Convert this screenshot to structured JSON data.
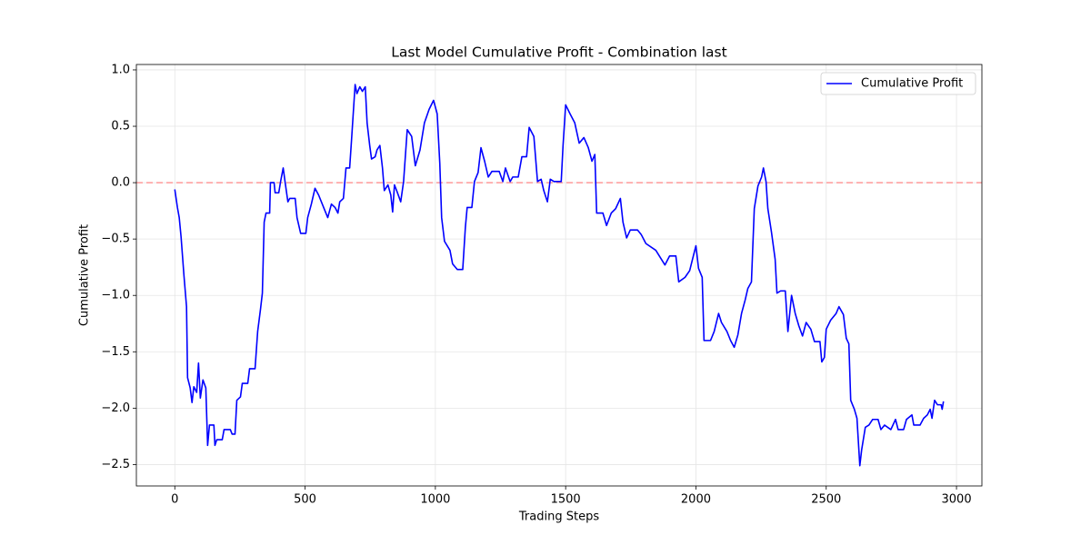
{
  "chart_data": {
    "type": "line",
    "title": "Last Model Cumulative Profit - Combination last",
    "x_label": "Trading Steps",
    "y_label": "Cumulative Profit",
    "x": [
      0,
      10,
      17,
      24,
      35,
      45,
      49,
      59,
      66,
      73,
      84,
      91,
      98,
      108,
      119,
      126,
      133,
      150,
      154,
      161,
      182,
      189,
      213,
      220,
      231,
      238,
      252,
      259,
      280,
      287,
      308,
      318,
      329,
      336,
      343,
      350,
      364,
      367,
      381,
      385,
      399,
      406,
      416,
      423,
      434,
      441,
      462,
      469,
      483,
      503,
      510,
      524,
      538,
      552,
      573,
      587,
      601,
      615,
      626,
      633,
      647,
      657,
      671,
      678,
      692,
      699,
      710,
      720,
      731,
      738,
      748,
      755,
      769,
      776,
      787,
      797,
      804,
      818,
      829,
      836,
      843,
      853,
      867,
      878,
      892,
      909,
      923,
      941,
      958,
      976,
      993,
      1007,
      1017,
      1024,
      1035,
      1056,
      1066,
      1084,
      1105,
      1115,
      1122,
      1140,
      1150,
      1164,
      1175,
      1189,
      1203,
      1217,
      1245,
      1259,
      1269,
      1287,
      1297,
      1318,
      1332,
      1350,
      1360,
      1378,
      1392,
      1406,
      1416,
      1430,
      1441,
      1455,
      1483,
      1490,
      1500,
      1517,
      1535,
      1552,
      1570,
      1587,
      1601,
      1612,
      1619,
      1643,
      1657,
      1675,
      1692,
      1710,
      1720,
      1734,
      1748,
      1776,
      1790,
      1808,
      1846,
      1881,
      1899,
      1923,
      1934,
      1958,
      1976,
      1990,
      2000,
      2010,
      2024,
      2031,
      2056,
      2070,
      2087,
      2098,
      2119,
      2133,
      2147,
      2161,
      2175,
      2189,
      2199,
      2213,
      2224,
      2238,
      2252,
      2259,
      2269,
      2276,
      2290,
      2304,
      2311,
      2325,
      2343,
      2353,
      2367,
      2381,
      2395,
      2409,
      2423,
      2441,
      2455,
      2476,
      2483,
      2493,
      2500,
      2517,
      2538,
      2549,
      2566,
      2577,
      2587,
      2594,
      2608,
      2618,
      2629,
      2636,
      2650,
      2664,
      2678,
      2699,
      2710,
      2724,
      2748,
      2766,
      2776,
      2797,
      2808,
      2829,
      2836,
      2860,
      2874,
      2888,
      2899,
      2906,
      2916,
      2927,
      2941,
      2945,
      2950
    ],
    "series": [
      {
        "name": "Cumulative Profit",
        "color": "#0000ff",
        "values": [
          -0.06,
          -0.22,
          -0.31,
          -0.48,
          -0.82,
          -1.1,
          -1.73,
          -1.82,
          -1.95,
          -1.81,
          -1.86,
          -1.6,
          -1.91,
          -1.75,
          -1.82,
          -2.33,
          -2.15,
          -2.15,
          -2.33,
          -2.28,
          -2.28,
          -2.19,
          -2.19,
          -2.23,
          -2.23,
          -1.93,
          -1.9,
          -1.78,
          -1.78,
          -1.65,
          -1.65,
          -1.32,
          -1.12,
          -0.98,
          -0.35,
          -0.27,
          -0.27,
          0,
          0,
          -0.09,
          -0.09,
          0.01,
          0.13,
          0.01,
          -0.17,
          -0.14,
          -0.14,
          -0.31,
          -0.45,
          -0.45,
          -0.31,
          -0.19,
          -0.05,
          -0.11,
          -0.23,
          -0.31,
          -0.19,
          -0.22,
          -0.27,
          -0.17,
          -0.14,
          0.13,
          0.13,
          0.37,
          0.87,
          0.79,
          0.85,
          0.81,
          0.85,
          0.53,
          0.33,
          0.21,
          0.23,
          0.29,
          0.33,
          0.13,
          -0.07,
          -0.02,
          -0.11,
          -0.26,
          -0.02,
          -0.08,
          -0.17,
          0.01,
          0.47,
          0.41,
          0.15,
          0.29,
          0.53,
          0.65,
          0.73,
          0.61,
          0.17,
          -0.31,
          -0.52,
          -0.6,
          -0.72,
          -0.77,
          -0.77,
          -0.4,
          -0.22,
          -0.22,
          0.01,
          0.09,
          0.31,
          0.19,
          0.05,
          0.1,
          0.1,
          0.01,
          0.13,
          0.01,
          0.05,
          0.05,
          0.23,
          0.23,
          0.49,
          0.41,
          0.01,
          0.03,
          -0.07,
          -0.17,
          0.03,
          0.01,
          0.01,
          0.33,
          0.69,
          0.61,
          0.53,
          0.35,
          0.4,
          0.31,
          0.19,
          0.25,
          -0.27,
          -0.27,
          -0.38,
          -0.27,
          -0.23,
          -0.14,
          -0.35,
          -0.49,
          -0.42,
          -0.42,
          -0.46,
          -0.54,
          -0.6,
          -0.73,
          -0.65,
          -0.65,
          -0.88,
          -0.84,
          -0.78,
          -0.65,
          -0.56,
          -0.76,
          -0.84,
          -1.4,
          -1.4,
          -1.32,
          -1.16,
          -1.24,
          -1.32,
          -1.4,
          -1.46,
          -1.35,
          -1.16,
          -1.04,
          -0.94,
          -0.88,
          -0.23,
          -0.03,
          0.05,
          0.13,
          0.01,
          -0.23,
          -0.44,
          -0.68,
          -0.98,
          -0.96,
          -0.96,
          -1.32,
          -1.0,
          -1.16,
          -1.27,
          -1.36,
          -1.24,
          -1.3,
          -1.41,
          -1.41,
          -1.59,
          -1.55,
          -1.3,
          -1.22,
          -1.16,
          -1.1,
          -1.17,
          -1.38,
          -1.43,
          -1.93,
          -2.01,
          -2.09,
          -2.51,
          -2.37,
          -2.17,
          -2.15,
          -2.1,
          -2.1,
          -2.19,
          -2.15,
          -2.19,
          -2.1,
          -2.19,
          -2.19,
          -2.1,
          -2.06,
          -2.15,
          -2.15,
          -2.09,
          -2.06,
          -2.01,
          -2.09,
          -1.93,
          -1.97,
          -1.97,
          -2.01,
          -1.94
        ]
      }
    ],
    "xlim": [
      -147.5,
      3097.5
    ],
    "ylim": [
      -2.69,
      1.048
    ],
    "xticks": [
      0,
      500,
      1000,
      1500,
      2000,
      2500,
      3000
    ],
    "yticks": [
      {
        "value": -2.5,
        "label": "−2.5"
      },
      {
        "value": -2,
        "label": "−2.0"
      },
      {
        "value": -1.5,
        "label": "−1.5"
      },
      {
        "value": -1,
        "label": "−1.0"
      },
      {
        "value": -0.5,
        "label": "−0.5"
      },
      {
        "value": 0,
        "label": "0.0"
      },
      0.5,
      {
        "value": 1,
        "label": "1.0"
      }
    ],
    "reference_line": {
      "value": 0,
      "color": "#ff9999",
      "style": "dashed"
    },
    "grid": true,
    "legend": "upper right"
  }
}
